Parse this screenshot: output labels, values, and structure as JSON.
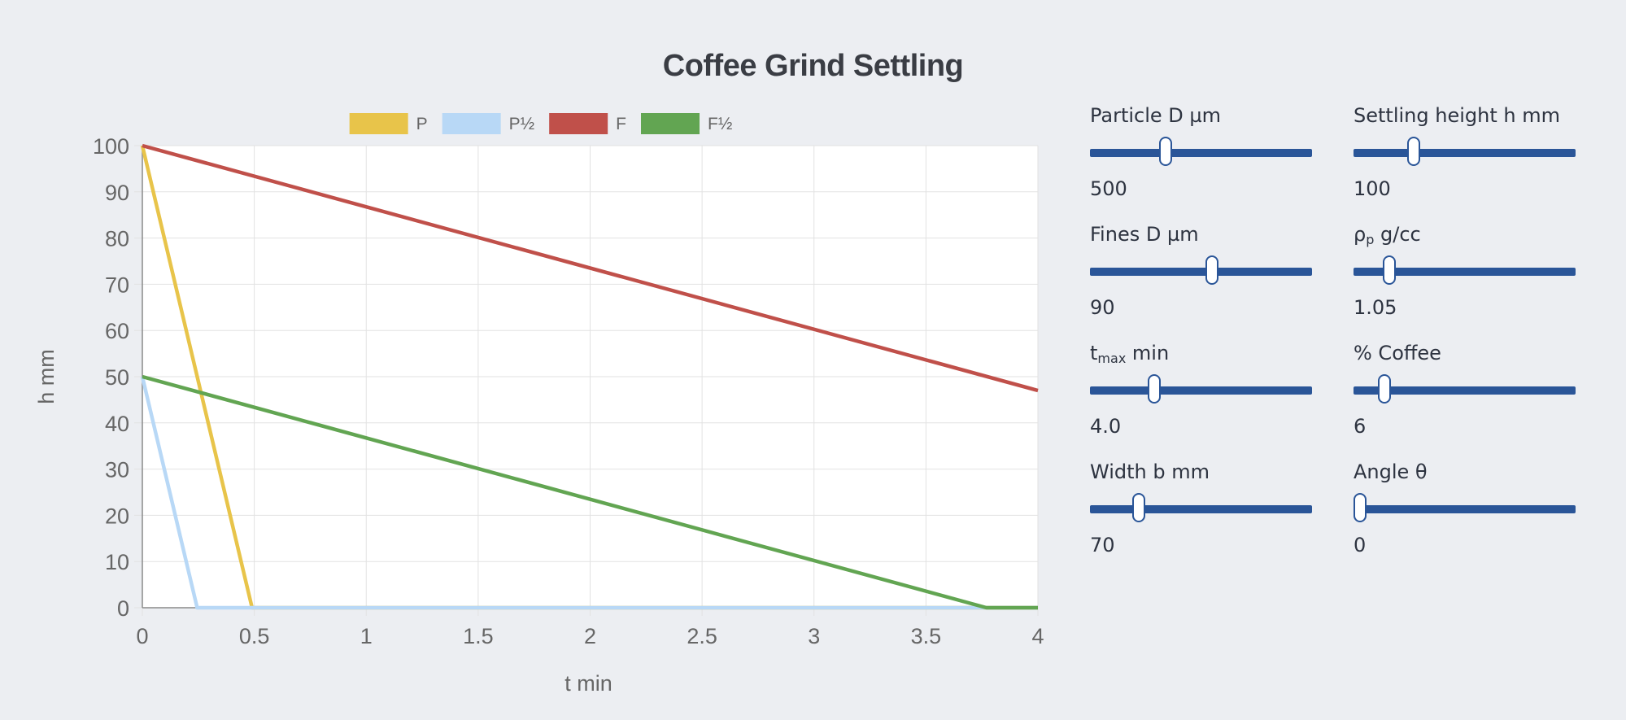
{
  "title": "Coffee Grind Settling",
  "chart_data": {
    "type": "line",
    "title": "Coffee Grind Settling",
    "xlabel": "t  min",
    "ylabel": "h  mm",
    "xlim": [
      0,
      4
    ],
    "ylim": [
      0,
      100
    ],
    "xticks": [
      "0",
      "0.5",
      "1",
      "1.5",
      "2",
      "2.5",
      "3",
      "3.5",
      "4"
    ],
    "yticks": [
      "0",
      "10",
      "20",
      "30",
      "40",
      "50",
      "60",
      "70",
      "80",
      "90",
      "100"
    ],
    "grid": true,
    "legend_position": "top",
    "series": [
      {
        "name": "P",
        "color": "#e8c44a",
        "points": [
          [
            0,
            100
          ],
          [
            0.49,
            0
          ],
          [
            4,
            0
          ]
        ]
      },
      {
        "name": "P½",
        "color": "#b8d8f6",
        "points": [
          [
            0,
            50
          ],
          [
            0.245,
            0
          ],
          [
            4,
            0
          ]
        ]
      },
      {
        "name": "F",
        "color": "#c0504a",
        "points": [
          [
            0,
            100
          ],
          [
            4,
            47
          ]
        ]
      },
      {
        "name": "F½",
        "color": "#62a552",
        "points": [
          [
            0,
            50
          ],
          [
            3.77,
            0
          ],
          [
            4,
            0
          ]
        ]
      }
    ]
  },
  "controls": [
    {
      "label": "Particle D µm",
      "value": "500",
      "fraction": 0.34
    },
    {
      "label": "Settling height h mm",
      "value": "100",
      "fraction": 0.27
    },
    {
      "label": "Fines D µm",
      "value": "90",
      "fraction": 0.55
    },
    {
      "label_main": "ρ",
      "label_sub": "p",
      "label_rest": " g/cc",
      "value": "1.05",
      "fraction": 0.16
    },
    {
      "label_main": "t",
      "label_sub": "max",
      "label_rest": " min",
      "value": "4.0",
      "fraction": 0.29
    },
    {
      "label": "% Coffee",
      "value": "6",
      "fraction": 0.14
    },
    {
      "label": "Width b mm",
      "value": "70",
      "fraction": 0.22
    },
    {
      "label": "Angle θ",
      "value": "0",
      "fraction": 0.03
    }
  ]
}
